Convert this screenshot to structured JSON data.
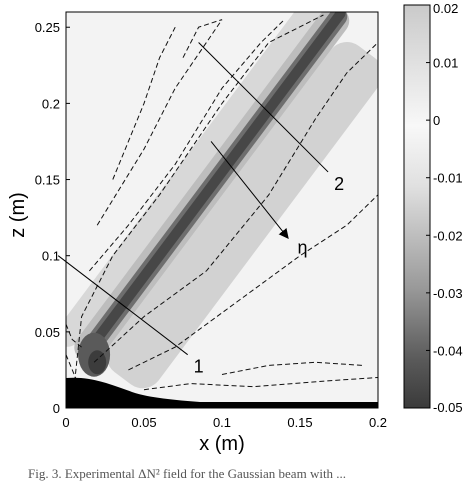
{
  "caption": "Fig. 3. Experimental ΔN² field for the Gaussian beam with ...",
  "chart_data": {
    "type": "heatmap",
    "title": "",
    "xlabel": "x (m)",
    "ylabel": "z (m)",
    "xlim": [
      0,
      0.2
    ],
    "ylim": [
      0,
      0.26
    ],
    "x_ticks": [
      0,
      0.05,
      0.1,
      0.15,
      0.2
    ],
    "x_tick_labels": [
      "0",
      "0.05",
      "0.1",
      "0.15",
      "0.2"
    ],
    "y_ticks": [
      0,
      0.05,
      0.1,
      0.15,
      0.2,
      0.25
    ],
    "y_tick_labels": [
      "0",
      "0.05",
      "0.1",
      "0.15",
      "0.2",
      "0.25"
    ],
    "colorbar": {
      "range": [
        -0.05,
        0.02
      ],
      "ticks": [
        0.02,
        0.01,
        0,
        -0.01,
        -0.02,
        -0.03,
        -0.04,
        -0.05
      ],
      "tick_labels": [
        "0.02",
        "0.01",
        "0",
        "-0.01",
        "-0.02",
        "-0.03",
        "-0.04",
        "-0.05"
      ],
      "colormap": "gray"
    },
    "beam": {
      "start": {
        "x": 0.012,
        "z": 0.03
      },
      "end": {
        "x": 0.18,
        "z": 0.26
      },
      "core_value": -0.045,
      "flank_value": 0.01
    },
    "cross_sections": [
      {
        "label": "1",
        "from": {
          "x": -0.005,
          "z": 0.1
        },
        "to": {
          "x": 0.078,
          "z": 0.035
        }
      },
      {
        "label": "2",
        "from": {
          "x": 0.085,
          "z": 0.24
        },
        "to": {
          "x": 0.168,
          "z": 0.155
        }
      }
    ],
    "eta_arrow": {
      "label": "η",
      "from": {
        "x": 0.093,
        "z": 0.175
      },
      "to": {
        "x": 0.142,
        "z": 0.112
      }
    },
    "grid": false,
    "contours": "dashed"
  }
}
